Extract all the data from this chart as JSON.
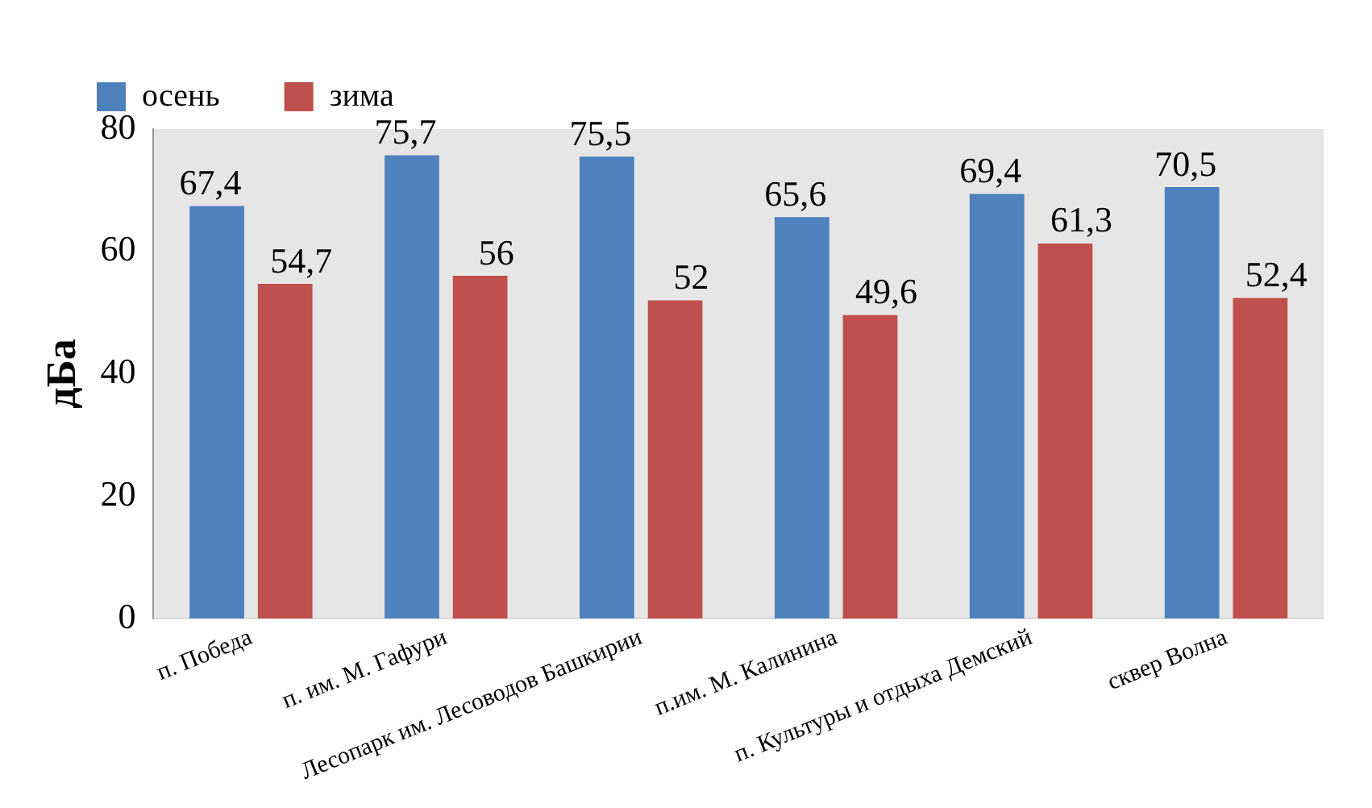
{
  "chart_data": {
    "type": "bar",
    "ylabel": "дБа",
    "categories": [
      "п. Победа",
      "п. им. М. Гафури",
      "Лесопарк им. Лесоводов Башкирии",
      "п.им. М. Калинина",
      "п. Культуры и отдыха Демский",
      "сквер Волна"
    ],
    "series": [
      {
        "name": "осень",
        "color": "#4f81bd",
        "values": [
          67.4,
          75.7,
          75.5,
          65.6,
          69.4,
          70.5
        ],
        "value_labels": [
          "67,4",
          "75,7",
          "75,5",
          "65,6",
          "69,4",
          "70,5"
        ]
      },
      {
        "name": "зима",
        "color": "#c0504d",
        "values": [
          54.7,
          56,
          52,
          49.6,
          61.3,
          52.4
        ],
        "value_labels": [
          "54,7",
          "56",
          "52",
          "49,6",
          "61,3",
          "52,4"
        ]
      }
    ],
    "ylim": [
      0,
      80
    ],
    "yticks": [
      0,
      20,
      40,
      60,
      80
    ],
    "grid": false,
    "legend": "top left"
  }
}
